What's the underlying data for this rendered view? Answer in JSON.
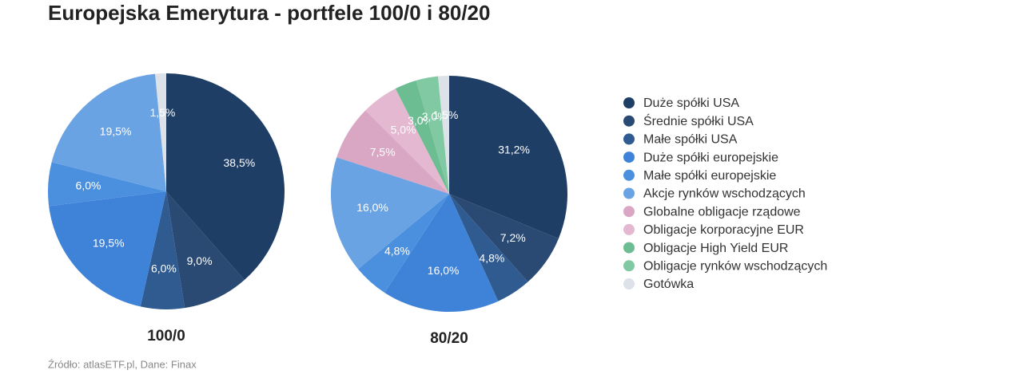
{
  "title": "Europejska Emerytura - portfele 100/0 i 80/20",
  "source": "Źródło: atlasETF.pl, Dane: Finax",
  "chart_data": [
    {
      "type": "pie",
      "title": "100/0",
      "categories": [
        "Duże spółki USA",
        "Średnie spółki USA",
        "Małe spółki USA",
        "Duże spółki europejskie",
        "Małe spółki europejskie",
        "Akcje rynków wschodzących",
        "Gotówka"
      ],
      "values": [
        38.5,
        9.0,
        6.0,
        19.5,
        6.0,
        19.5,
        1.5
      ],
      "value_labels": [
        "38,5%",
        "9,0%",
        "6,0%",
        "19,5%",
        "6,0%",
        "19,5%",
        "1,5%"
      ],
      "colors": [
        "#1f3e66",
        "#2a4a73",
        "#2f5b91",
        "#3f83d8",
        "#4b90df",
        "#69a3e3",
        "#dce2e8"
      ]
    },
    {
      "type": "pie",
      "title": "80/20",
      "categories": [
        "Duże spółki USA",
        "Średnie spółki USA",
        "Małe spółki USA",
        "Duże spółki europejskie",
        "Małe spółki europejskie",
        "Akcje rynków wschodzących",
        "Globalne obligacje rządowe",
        "Obligacje korporacyjne EUR",
        "Obligacje High Yield EUR",
        "Obligacje rynków wschodzących",
        "Gotówka"
      ],
      "values": [
        31.2,
        7.2,
        4.8,
        16.0,
        4.8,
        16.0,
        7.5,
        5.0,
        3.0,
        3.0,
        1.5
      ],
      "value_labels": [
        "31,2%",
        "7,2%",
        "4,8%",
        "16,0%",
        "4,8%",
        "16,0%",
        "7,5%",
        "5,0%",
        "3,0%",
        "3,0%",
        "1,5%"
      ],
      "colors": [
        "#1f3e66",
        "#2a4a73",
        "#2f5b91",
        "#3f83d8",
        "#4b90df",
        "#69a3e3",
        "#d9a7c4",
        "#e4b8d0",
        "#6dbd92",
        "#80c9a2",
        "#dce2e8"
      ]
    }
  ]
}
